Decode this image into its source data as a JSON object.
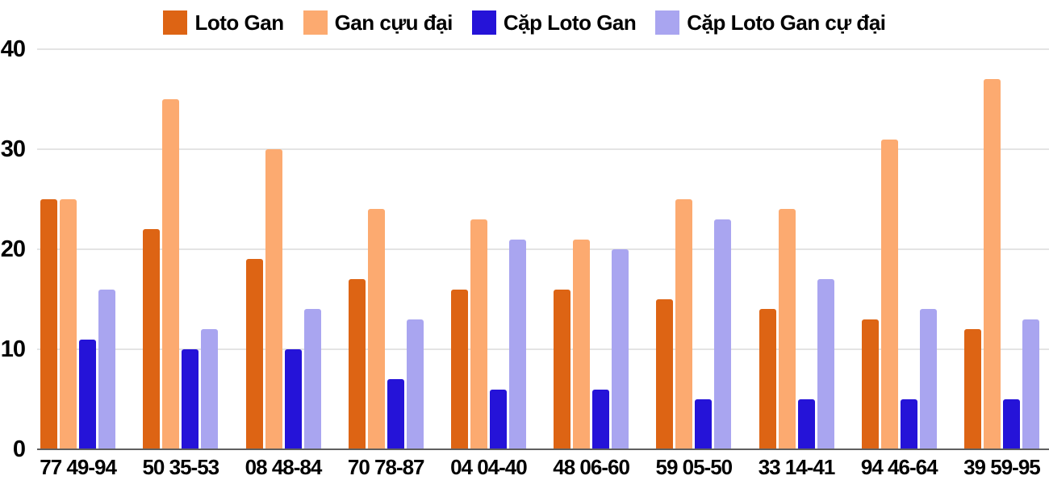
{
  "chart_data": {
    "type": "bar",
    "title": "",
    "categories": [
      "77 49-94",
      "50 35-53",
      "08 48-84",
      "70 78-87",
      "04 04-40",
      "48 06-60",
      "59 05-50",
      "33 14-41",
      "94 46-64",
      "39 59-95"
    ],
    "series": [
      {
        "name": "Loto Gan",
        "color": "#dd6414",
        "values": [
          25,
          22,
          19,
          17,
          16,
          16,
          15,
          14,
          13,
          12
        ]
      },
      {
        "name": "Gan cựu đại",
        "color": "#fcaa70",
        "values": [
          25,
          35,
          30,
          24,
          23,
          21,
          25,
          24,
          31,
          37
        ]
      },
      {
        "name": "Cặp Loto Gan",
        "color": "#2513d8",
        "values": [
          11,
          10,
          10,
          7,
          6,
          6,
          5,
          5,
          5,
          5
        ]
      },
      {
        "name": "Cặp Loto Gan cự đại",
        "color": "#a9a5f0",
        "values": [
          16,
          12,
          14,
          13,
          21,
          20,
          23,
          17,
          14,
          13
        ]
      }
    ],
    "xlabel": "",
    "ylabel": "",
    "ylim": [
      0,
      40
    ],
    "yticks": [
      0,
      10,
      20,
      30,
      40
    ],
    "grid": true,
    "legend_position": "top",
    "colors": {
      "grid_line": "#e4e4e4",
      "axis_line": "#5f5f5f",
      "label_text": "#000000",
      "background": "#ffffff"
    }
  }
}
